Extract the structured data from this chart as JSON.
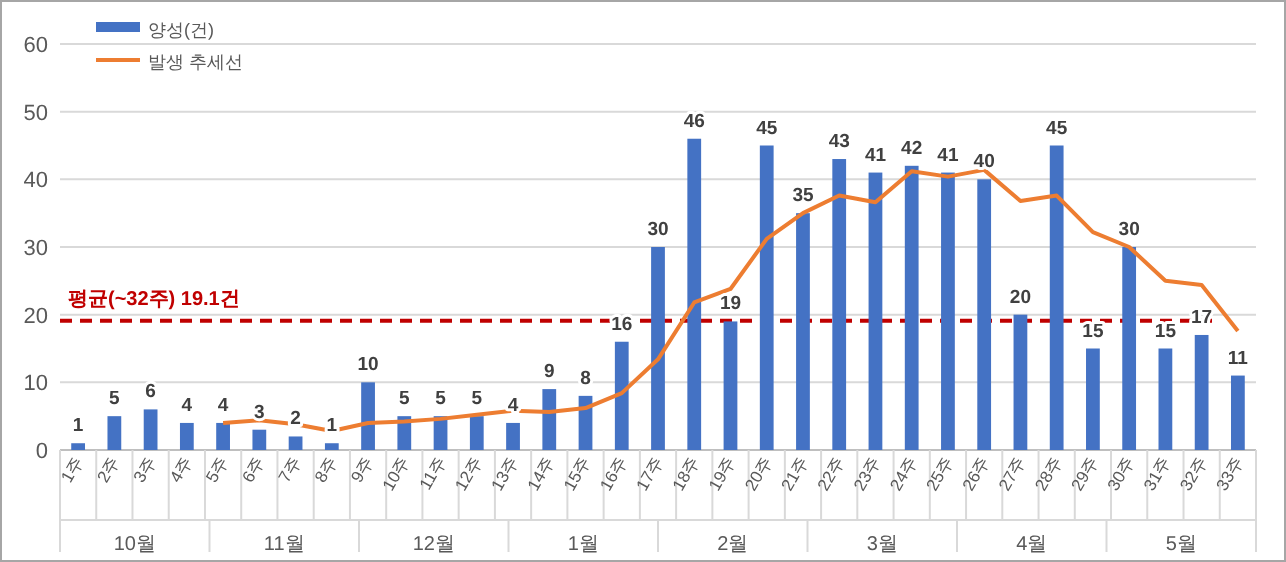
{
  "chart_data": {
    "type": "bar",
    "categories": [
      "1주",
      "2주",
      "3주",
      "4주",
      "5주",
      "6주",
      "7주",
      "8주",
      "9주",
      "10주",
      "11주",
      "12주",
      "13주",
      "14주",
      "15주",
      "16주",
      "17주",
      "18주",
      "19주",
      "20주",
      "21주",
      "22주",
      "23주",
      "24주",
      "25주",
      "26주",
      "27주",
      "28주",
      "29주",
      "30주",
      "31주",
      "32주",
      "33주"
    ],
    "series": [
      {
        "name": "양성(건)",
        "color": "#4472c4",
        "values": [
          1,
          5,
          6,
          4,
          4,
          3,
          2,
          1,
          10,
          5,
          5,
          5,
          4,
          9,
          8,
          16,
          30,
          46,
          19,
          45,
          35,
          43,
          41,
          42,
          41,
          40,
          20,
          45,
          15,
          30,
          15,
          17,
          11
        ],
        "value_labels": [
          "1",
          "5",
          "6",
          "4",
          "4",
          "3",
          "2",
          "1",
          "10",
          "5",
          "5",
          "5",
          "4",
          "9",
          "8",
          "16",
          "30",
          "46",
          "19",
          "45",
          "35",
          "43",
          "41",
          "42",
          "41",
          "40",
          "20",
          "45",
          "15",
          "30",
          "15",
          "17",
          "11"
        ]
      },
      {
        "name": "발생 추세선",
        "type": "line",
        "color": "#ed7d31",
        "values": [
          null,
          null,
          null,
          null,
          4,
          4.4,
          3.8,
          2.8,
          4,
          4.2,
          4.6,
          5.2,
          5.8,
          5.6,
          6.2,
          8.4,
          13.4,
          21.8,
          23.8,
          31.2,
          35,
          37.6,
          36.6,
          41.2,
          40.4,
          41.4,
          36.8,
          37.6,
          32.2,
          30,
          25,
          24.4,
          17.6
        ]
      }
    ],
    "ylim": [
      0,
      60
    ],
    "yticks": [
      0,
      10,
      20,
      30,
      40,
      50,
      60
    ],
    "grid": "y",
    "legend": "top left",
    "ref_lines": [
      {
        "axis": "y",
        "value": 19.1,
        "label": "평균(~32주) 19.1건",
        "color": "#c00000",
        "line_style": "dashed"
      }
    ],
    "annotations": [
      "10월",
      "11월",
      "12월",
      "1월",
      "2월",
      "3월",
      "4월",
      "5월"
    ]
  }
}
